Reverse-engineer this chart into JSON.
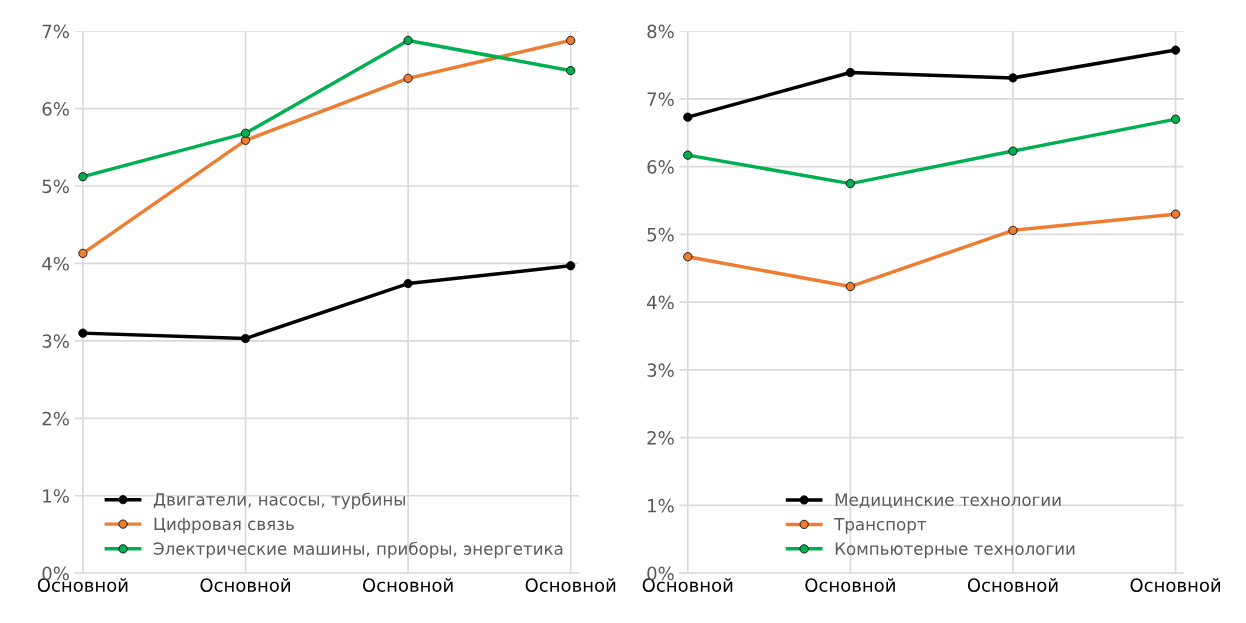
{
  "chart_data": [
    {
      "type": "line",
      "categories": [
        "Основной",
        "Основной",
        "Основной",
        "Основной"
      ],
      "ylim": [
        0,
        0.07
      ],
      "yticks": [
        {
          "value": 0,
          "label": "0%"
        },
        {
          "value": 0.01,
          "label": "1%"
        },
        {
          "value": 0.02,
          "label": "2%"
        },
        {
          "value": 0.03,
          "label": "3%"
        },
        {
          "value": 0.04,
          "label": "4%"
        },
        {
          "value": 0.05,
          "label": "5%"
        },
        {
          "value": 0.06,
          "label": "6%"
        },
        {
          "value": 0.07,
          "label": "7%"
        }
      ],
      "grid": true,
      "legend": "bottom right",
      "marker": "circle",
      "series": [
        {
          "name": "Двигатели, насосы, турбины",
          "color": "#000000",
          "values": [
            0.031,
            0.0303,
            0.0374,
            0.0397
          ]
        },
        {
          "name": "Цифровая связь",
          "color": "#ed7d31",
          "values": [
            0.0413,
            0.0559,
            0.0639,
            0.0688
          ]
        },
        {
          "name": "Электрические машины, приборы, энергетика",
          "color": "#00b050",
          "values": [
            0.0512,
            0.0568,
            0.0688,
            0.0649
          ]
        }
      ]
    },
    {
      "type": "line",
      "categories": [
        "Основной",
        "Основной",
        "Основной",
        "Основной"
      ],
      "ylim": [
        0,
        0.08
      ],
      "yticks": [
        {
          "value": 0,
          "label": "0%"
        },
        {
          "value": 0.01,
          "label": "1%"
        },
        {
          "value": 0.02,
          "label": "2%"
        },
        {
          "value": 0.03,
          "label": "3%"
        },
        {
          "value": 0.04,
          "label": "4%"
        },
        {
          "value": 0.05,
          "label": "5%"
        },
        {
          "value": 0.06,
          "label": "6%"
        },
        {
          "value": 0.07,
          "label": "7%"
        },
        {
          "value": 0.08,
          "label": "8%"
        }
      ],
      "grid": true,
      "legend": "bottom",
      "marker": "circle",
      "series": [
        {
          "name": "Медицинские технологии",
          "color": "#000000",
          "values": [
            0.0673,
            0.0739,
            0.0731,
            0.0772
          ]
        },
        {
          "name": "Транспорт",
          "color": "#ed7d31",
          "values": [
            0.0467,
            0.0423,
            0.0506,
            0.053
          ]
        },
        {
          "name": "Компьютерные технологии",
          "color": "#00b050",
          "values": [
            0.0617,
            0.0575,
            0.0623,
            0.067
          ]
        }
      ]
    }
  ]
}
